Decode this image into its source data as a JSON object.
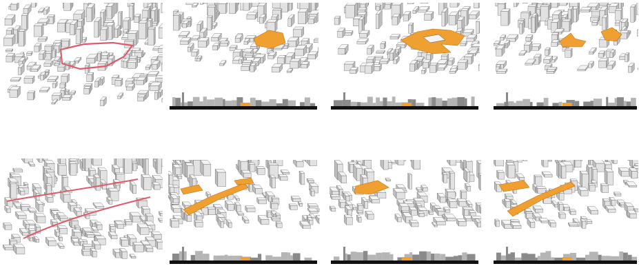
{
  "colors": {
    "background": "#ffffff",
    "building_fill": "#f4f4f4",
    "building_shade": "#bdbdbd",
    "building_stroke": "#555555",
    "site_outline": "#e05a6a",
    "proposal": "#f0a030",
    "section_ground": "#111111",
    "section_mass": "#8a8a8a",
    "section_mass_light": "#b5b5b5"
  },
  "rows": [
    {
      "name": "upper-row",
      "panels": [
        {
          "name": "site-context",
          "type": "site"
        },
        {
          "name": "scenario-1",
          "type": "scenario",
          "has_section": true
        },
        {
          "name": "scenario-2",
          "type": "scenario",
          "has_section": true
        },
        {
          "name": "scenario-3",
          "type": "scenario",
          "has_section": true
        }
      ]
    },
    {
      "name": "lower-row",
      "panels": [
        {
          "name": "corridor-context",
          "type": "site"
        },
        {
          "name": "scenario-4",
          "type": "scenario",
          "has_section": true
        },
        {
          "name": "scenario-5",
          "type": "scenario",
          "has_section": true
        },
        {
          "name": "scenario-6",
          "type": "scenario",
          "has_section": true
        }
      ]
    }
  ]
}
